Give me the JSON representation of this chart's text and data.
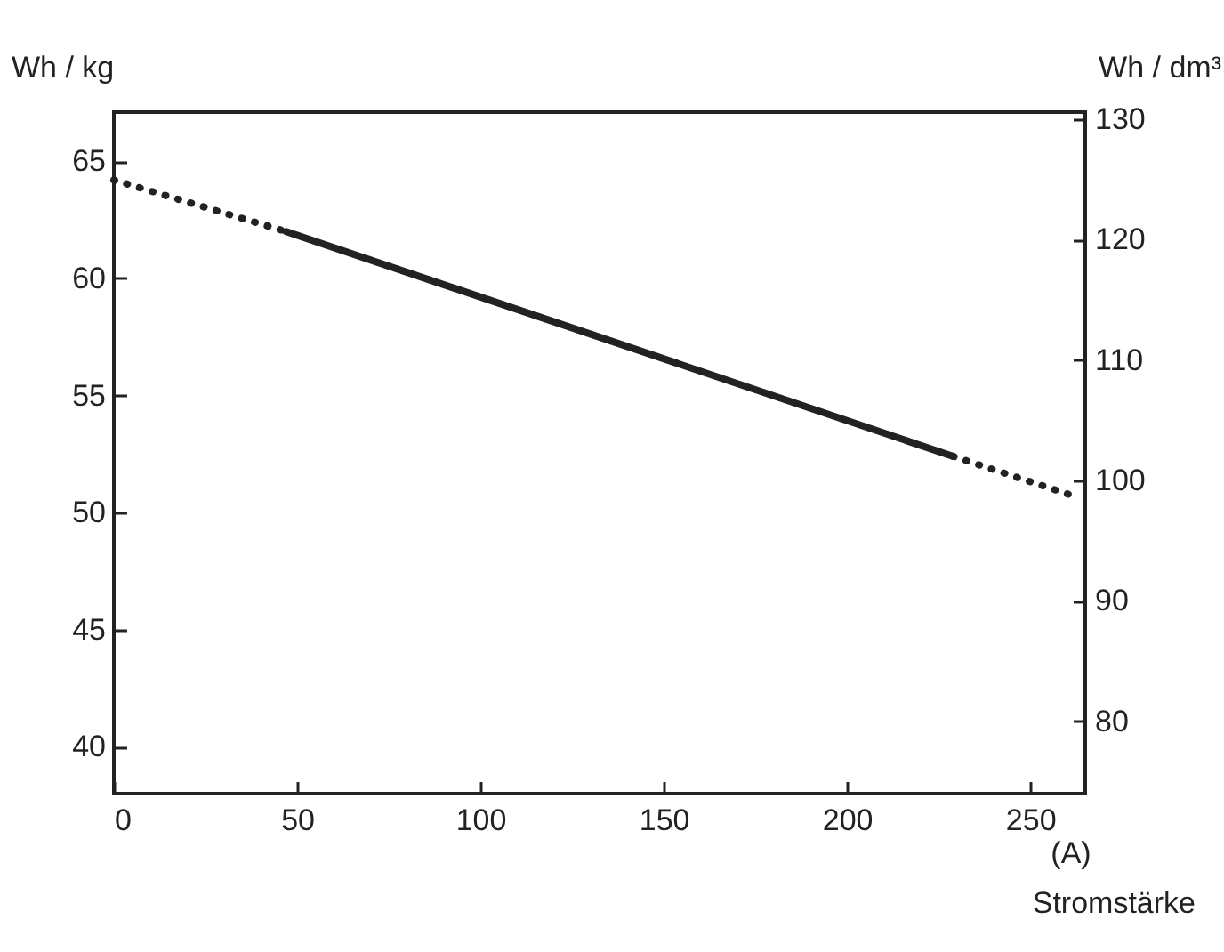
{
  "chart_data": {
    "type": "line",
    "xlabel": "Stromstärke",
    "ylabel": "Wh / kg",
    "y2label": "Wh / dm³",
    "annotations": [
      "(A)"
    ],
    "series": [
      {
        "color": "#222222",
        "line_style": "dotted",
        "x": [
          0,
          47
        ],
        "values": [
          64.2,
          62
        ]
      },
      {
        "color": "#222222",
        "line_style": "solid",
        "x": [
          47,
          229
        ],
        "values": [
          62,
          52.4
        ]
      },
      {
        "color": "#222222",
        "line_style": "dotted",
        "x": [
          229,
          263
        ],
        "values": [
          52.4,
          50.65
        ]
      }
    ],
    "xlim": [
      0,
      265
    ],
    "xticks": [
      0,
      50,
      100,
      150,
      200,
      250
    ],
    "ylim": [
      38,
      67.1
    ],
    "yticks": [
      40,
      45,
      50,
      55,
      60,
      65
    ],
    "y2lim": [
      74,
      130.6
    ],
    "y2ticks": [
      80,
      90,
      100,
      110,
      120,
      130
    ],
    "marker": "none"
  }
}
